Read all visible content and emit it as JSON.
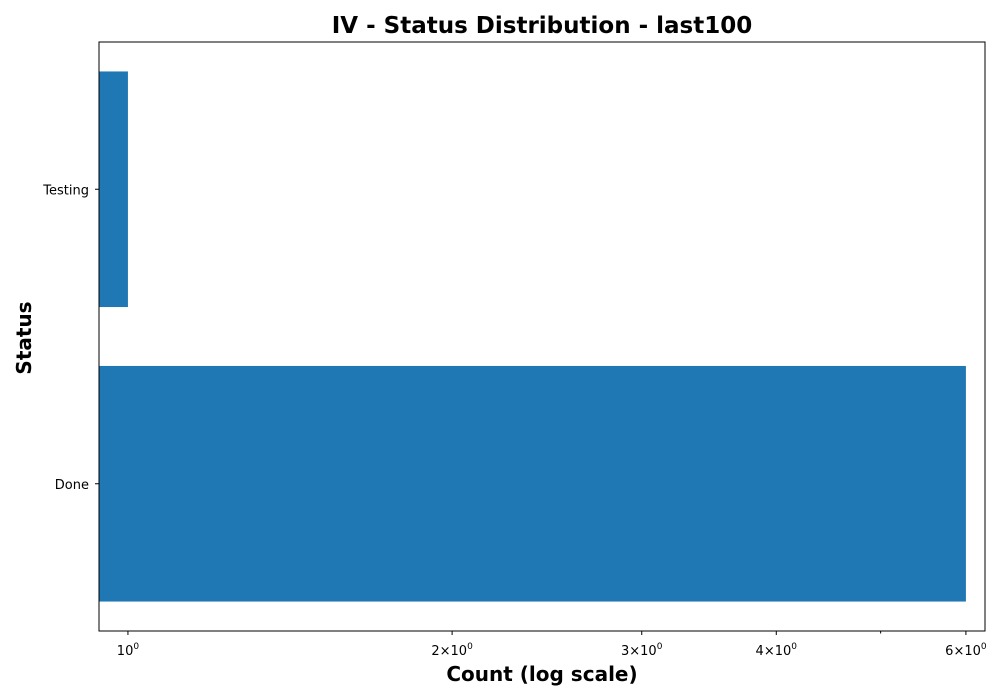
{
  "chart_data": {
    "type": "bar",
    "orientation": "horizontal",
    "title": "IV - Status Distribution - last100",
    "xlabel": "Count (log scale)",
    "ylabel": "Status",
    "x_scale": "log",
    "xlim": [
      0.94,
      6.25
    ],
    "categories": [
      "Testing",
      "Done"
    ],
    "values": [
      1,
      6
    ],
    "bar_color": "#1f77b4",
    "grid": false,
    "legend": "none",
    "x_ticks": [
      {
        "value": 1,
        "mantissa": "",
        "base": "10",
        "exp": "0"
      },
      {
        "value": 2,
        "mantissa": "2×",
        "base": "10",
        "exp": "0"
      },
      {
        "value": 3,
        "mantissa": "3×",
        "base": "10",
        "exp": "0"
      },
      {
        "value": 4,
        "mantissa": "4×",
        "base": "10",
        "exp": "0"
      },
      {
        "value": 6,
        "mantissa": "6×",
        "base": "10",
        "exp": "0"
      }
    ],
    "x_minor_ticks": [
      5
    ]
  }
}
